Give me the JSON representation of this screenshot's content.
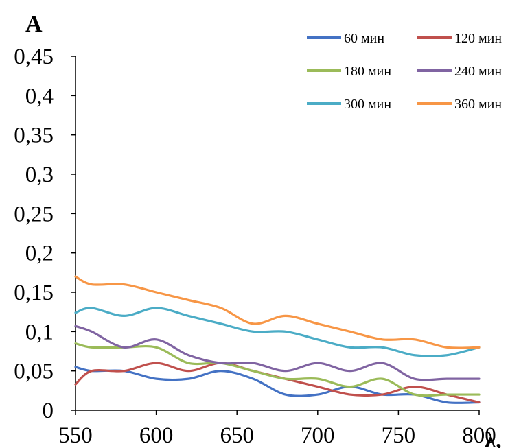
{
  "chart_data": {
    "type": "line",
    "ylabel": "A",
    "xlabel": "λ,",
    "xlim": [
      550,
      800
    ],
    "ylim": [
      0,
      0.45
    ],
    "x_ticks": [
      "550",
      "600",
      "650",
      "700",
      "750",
      "800"
    ],
    "y_ticks": [
      "0",
      "0,05",
      "0,1",
      "0,15",
      "0,2",
      "0,25",
      "0,3",
      "0,35",
      "0,4",
      "0,45"
    ],
    "grid": false,
    "legend_position": "top-right",
    "x": [
      550,
      560,
      580,
      600,
      620,
      640,
      660,
      680,
      700,
      720,
      740,
      760,
      780,
      800
    ],
    "series": [
      {
        "name": "60 мин",
        "color": "#4472C4",
        "values": [
          0.055,
          0.05,
          0.05,
          0.04,
          0.04,
          0.05,
          0.04,
          0.02,
          0.02,
          0.03,
          0.02,
          0.02,
          0.01,
          0.01
        ]
      },
      {
        "name": "120 мин",
        "color": "#C0504D",
        "values": [
          0.033,
          0.05,
          0.05,
          0.06,
          0.05,
          0.06,
          0.05,
          0.04,
          0.03,
          0.02,
          0.02,
          0.03,
          0.02,
          0.01
        ]
      },
      {
        "name": "180 мин",
        "color": "#9BBB59",
        "values": [
          0.085,
          0.08,
          0.08,
          0.08,
          0.06,
          0.06,
          0.05,
          0.04,
          0.04,
          0.03,
          0.04,
          0.02,
          0.02,
          0.02
        ]
      },
      {
        "name": "240 мин",
        "color": "#8064A2",
        "values": [
          0.107,
          0.1,
          0.08,
          0.09,
          0.07,
          0.06,
          0.06,
          0.05,
          0.06,
          0.05,
          0.06,
          0.04,
          0.04,
          0.04
        ]
      },
      {
        "name": "300 мин",
        "color": "#4BACC6",
        "values": [
          0.124,
          0.13,
          0.12,
          0.13,
          0.12,
          0.11,
          0.1,
          0.1,
          0.09,
          0.08,
          0.08,
          0.07,
          0.07,
          0.08
        ]
      },
      {
        "name": "360 мин",
        "color": "#F79646",
        "values": [
          0.17,
          0.16,
          0.16,
          0.15,
          0.14,
          0.13,
          0.11,
          0.12,
          0.11,
          0.1,
          0.09,
          0.09,
          0.08,
          0.08
        ]
      }
    ]
  }
}
